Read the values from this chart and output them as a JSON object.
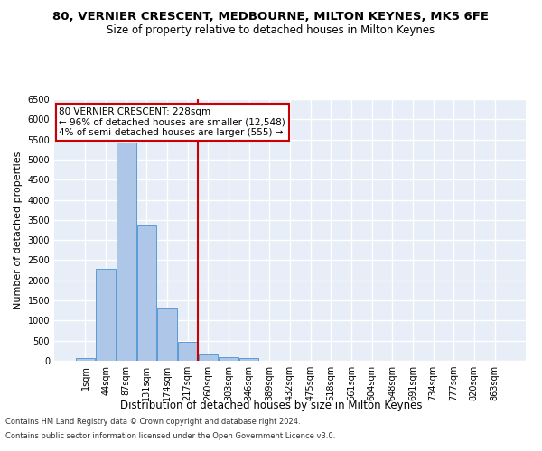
{
  "title1": "80, VERNIER CRESCENT, MEDBOURNE, MILTON KEYNES, MK5 6FE",
  "title2": "Size of property relative to detached houses in Milton Keynes",
  "xlabel": "Distribution of detached houses by size in Milton Keynes",
  "ylabel": "Number of detached properties",
  "footer1": "Contains HM Land Registry data © Crown copyright and database right 2024.",
  "footer2": "Contains public sector information licensed under the Open Government Licence v3.0.",
  "categories": [
    "1sqm",
    "44sqm",
    "87sqm",
    "131sqm",
    "174sqm",
    "217sqm",
    "260sqm",
    "303sqm",
    "346sqm",
    "389sqm",
    "432sqm",
    "475sqm",
    "518sqm",
    "561sqm",
    "604sqm",
    "648sqm",
    "691sqm",
    "734sqm",
    "777sqm",
    "820sqm",
    "863sqm"
  ],
  "values": [
    70,
    2280,
    5420,
    3390,
    1310,
    480,
    160,
    100,
    65,
    0,
    0,
    0,
    0,
    0,
    0,
    0,
    0,
    0,
    0,
    0,
    0
  ],
  "ylim": [
    0,
    6500
  ],
  "yticks": [
    0,
    500,
    1000,
    1500,
    2000,
    2500,
    3000,
    3500,
    4000,
    4500,
    5000,
    5500,
    6000,
    6500
  ],
  "bar_color": "#aec6e8",
  "bar_edge_color": "#5b9bd5",
  "vline_x": 5.5,
  "vline_color": "#cc0000",
  "annotation_title": "80 VERNIER CRESCENT: 228sqm",
  "annotation_line1": "← 96% of detached houses are smaller (12,548)",
  "annotation_line2": "4% of semi-detached houses are larger (555) →",
  "annotation_box_color": "#cc0000",
  "background_color": "#e8eef7",
  "grid_color": "#ffffff",
  "title1_fontsize": 9.5,
  "title2_fontsize": 8.5,
  "tick_fontsize": 7,
  "ylabel_fontsize": 8,
  "xlabel_fontsize": 8.5,
  "footer_fontsize": 6,
  "annot_fontsize": 7.5
}
